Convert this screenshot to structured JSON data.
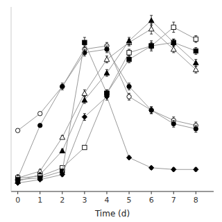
{
  "chart_data": {
    "type": "line",
    "x": [
      0,
      1,
      2,
      3,
      4,
      5,
      6,
      7,
      8
    ],
    "xlabel": "Time (d)",
    "xlim": [
      -0.3,
      8.8
    ],
    "ylim": [
      -0.04,
      1.05
    ],
    "xticks": [
      0,
      1,
      2,
      3,
      4,
      5,
      6,
      7,
      8
    ],
    "tick_labels": "x",
    "color": "#999999",
    "series": [
      {
        "marker": "open-circle",
        "values": [
          0.32,
          0.42,
          0.58,
          0.8,
          0.82,
          0.52,
          0.44,
          0.38,
          0.35
        ],
        "errors": [
          0.01,
          0.01,
          0.01,
          0.02,
          0.02,
          0.02,
          0.02,
          0.02,
          0.02
        ]
      },
      {
        "marker": "filled-circle",
        "values": [
          0.04,
          0.35,
          0.58,
          0.78,
          0.8,
          0.58,
          0.44,
          0.36,
          0.33
        ],
        "errors": [
          0.01,
          0.01,
          0.02,
          0.02,
          0.02,
          0.02,
          0.02,
          0.02,
          0.02
        ]
      },
      {
        "marker": "open-triangle",
        "values": [
          0.04,
          0.08,
          0.28,
          0.54,
          0.74,
          0.84,
          0.92,
          0.8,
          0.68
        ],
        "errors": [
          0.005,
          0.01,
          0.01,
          0.02,
          0.02,
          0.02,
          0.03,
          0.02,
          0.02
        ]
      },
      {
        "marker": "filled-triangle",
        "values": [
          0.02,
          0.06,
          0.2,
          0.5,
          0.66,
          0.85,
          0.97,
          0.84,
          0.72
        ],
        "errors": [
          0.005,
          0.01,
          0.01,
          0.02,
          0.02,
          0.02,
          0.03,
          0.02,
          0.02
        ]
      },
      {
        "marker": "open-square",
        "values": [
          0.04,
          0.05,
          0.1,
          0.22,
          0.54,
          0.78,
          0.82,
          0.93,
          0.86
        ],
        "errors": [
          0.02,
          0.01,
          0.01,
          0.01,
          0.02,
          0.02,
          0.03,
          0.03,
          0.02
        ]
      },
      {
        "marker": "filled-square",
        "values": [
          0.03,
          0.04,
          0.08,
          0.84,
          0.54,
          0.74,
          0.82,
          0.84,
          0.79
        ],
        "errors": [
          0.01,
          0.01,
          0.01,
          0.03,
          0.02,
          0.02,
          0.02,
          0.02,
          0.02
        ]
      },
      {
        "marker": "filled-diamond",
        "values": [
          0.01,
          0.03,
          0.06,
          0.4,
          0.52,
          0.16,
          0.1,
          0.09,
          0.09
        ],
        "errors": [
          0.005,
          0.005,
          0.01,
          0.02,
          0.02,
          0.01,
          0.01,
          0.01,
          0.01
        ]
      }
    ]
  }
}
